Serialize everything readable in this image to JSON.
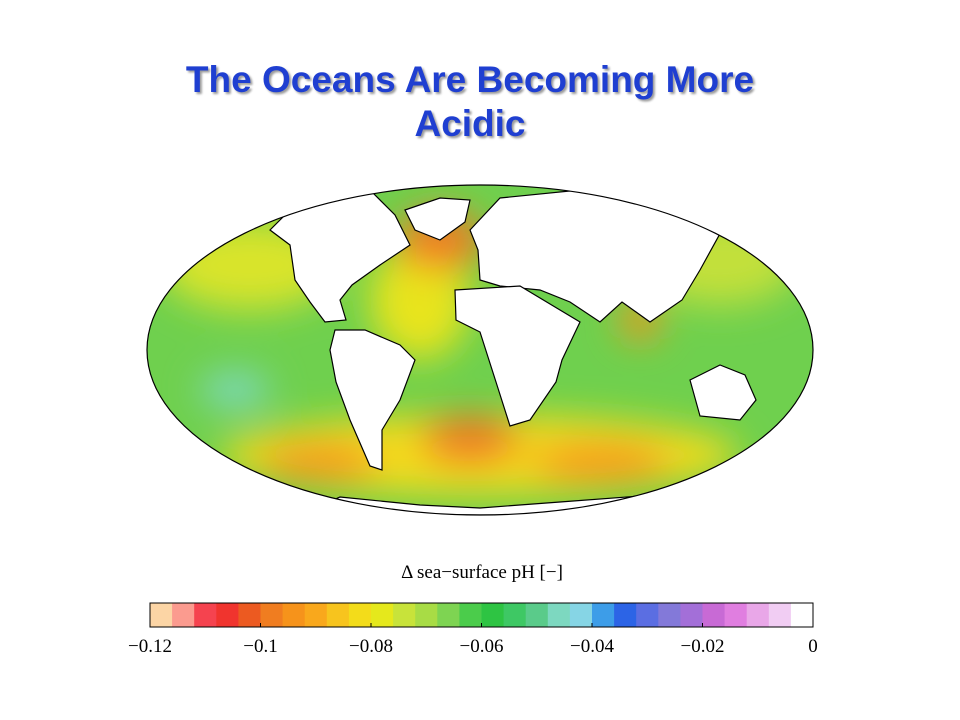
{
  "title": "The Oceans Are Becoming More Acidic",
  "colorbar": {
    "label": "Δ sea−surface pH [−]",
    "range": [
      -0.12,
      0
    ],
    "colors": [
      "#fcd5a5",
      "#fb9b8f",
      "#f5434f",
      "#f0342e",
      "#ec5a21",
      "#f07d20",
      "#f6931b",
      "#f9a81c",
      "#f7c41e",
      "#f3dc1a",
      "#e5e81c",
      "#c8e33a",
      "#a8dc45",
      "#7ed452",
      "#4bcc4b",
      "#2ec443",
      "#3ec864",
      "#5acb8a",
      "#7dd8c0",
      "#86d5e5",
      "#3d9de8",
      "#2c64e6",
      "#5b6ee2",
      "#8379d9",
      "#a36fd8",
      "#c86ad5",
      "#e07ee0",
      "#e9a7e8",
      "#f1cdf3",
      "#ffffff"
    ],
    "ticks": [
      {
        "value": -0.12,
        "label": "−0.12"
      },
      {
        "value": -0.1,
        "label": "−0.1"
      },
      {
        "value": -0.08,
        "label": "−0.08"
      },
      {
        "value": -0.06,
        "label": "−0.06"
      },
      {
        "value": -0.04,
        "label": "−0.04"
      },
      {
        "value": -0.02,
        "label": "−0.02"
      },
      0
    ]
  }
}
